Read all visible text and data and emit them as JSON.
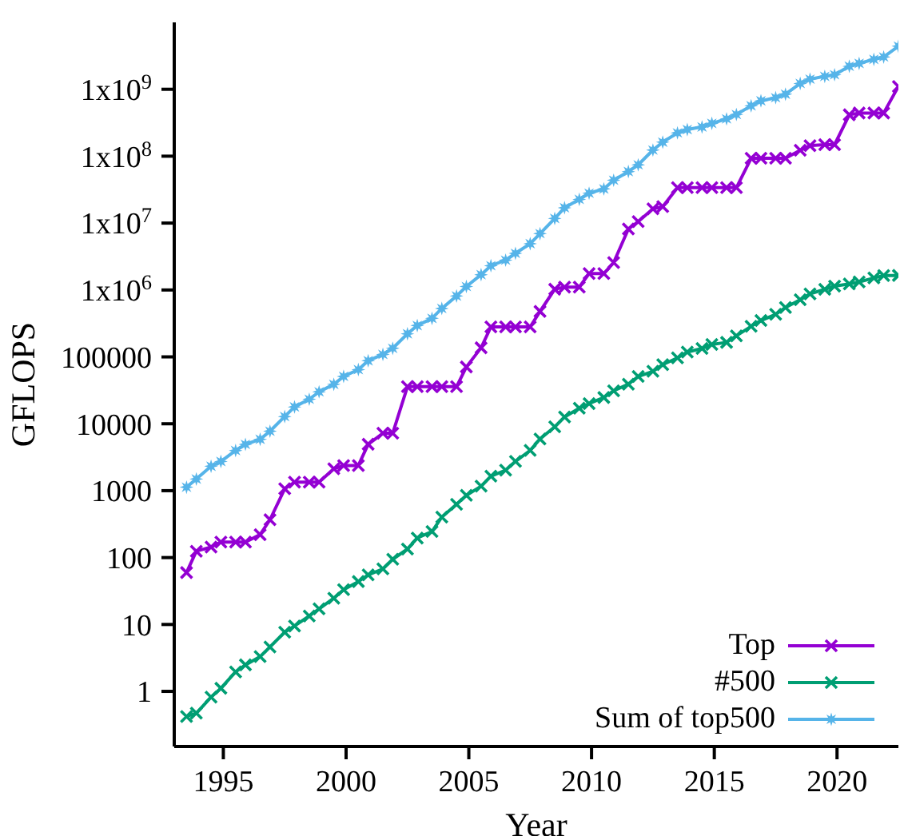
{
  "chart_data": {
    "type": "line",
    "xlabel": "Year",
    "ylabel": "GFLOPS",
    "log": "y",
    "grid": false,
    "legend": "bottom right",
    "xlim": [
      1993,
      2022.5
    ],
    "xticks": [
      1995,
      2000,
      2005,
      2010,
      2015,
      2020
    ],
    "ylim": [
      0.15,
      10000000000
    ],
    "yticks": [
      1,
      10,
      100,
      1000,
      10000,
      100000,
      {
        "value": 1000000,
        "label": "1x10$^{6}$"
      },
      {
        "value": 10000000,
        "label": "1x10$^{7}$"
      },
      {
        "value": 100000000,
        "label": "1x10$^{8}$"
      },
      {
        "value": 1000000000,
        "label": "1x10$^{9}$"
      }
    ],
    "x": [
      1993.5,
      1993.9,
      1994.5,
      1994.9,
      1995.5,
      1995.9,
      1996.5,
      1996.9,
      1997.5,
      1997.9,
      1998.5,
      1998.9,
      1999.5,
      1999.9,
      2000.5,
      2000.9,
      2001.5,
      2001.9,
      2002.5,
      2002.9,
      2003.5,
      2003.9,
      2004.5,
      2004.9,
      2005.5,
      2005.9,
      2006.5,
      2006.9,
      2007.5,
      2007.9,
      2008.5,
      2008.9,
      2009.5,
      2009.9,
      2010.5,
      2010.9,
      2011.5,
      2011.9,
      2012.5,
      2012.9,
      2013.5,
      2013.9,
      2014.5,
      2014.9,
      2015.5,
      2015.9,
      2016.5,
      2016.9,
      2017.5,
      2017.9,
      2018.5,
      2018.9,
      2019.5,
      2019.9,
      2020.5,
      2020.9,
      2021.5,
      2021.9,
      2022.5
    ],
    "series": [
      {
        "name": "Top",
        "color": "#9400d3",
        "marker": "cross",
        "values": [
          59.7,
          124.5,
          143.4,
          170.4,
          170.4,
          170.4,
          220.4,
          368.2,
          1068,
          1338,
          1338,
          1338,
          2121,
          2379,
          2379,
          4938,
          7226,
          7226,
          35860,
          35860,
          35860,
          35860,
          35860,
          70720,
          136800,
          280600,
          280600,
          280600,
          280600,
          478200,
          1026000,
          1105000,
          1105000,
          1759000,
          1759000,
          2566000,
          8162000,
          10510000,
          16320000,
          17590000,
          33860000,
          33860000,
          33860000,
          33860000,
          33860000,
          33860000,
          93010000,
          93010000,
          93010000,
          93010000,
          122300000,
          143500000,
          148600000,
          148600000,
          415500000,
          442000000,
          442000000,
          442000000,
          1102000000
        ]
      },
      {
        "name": "#500",
        "color": "#009e73",
        "marker": "cross",
        "values": [
          0.422,
          0.472,
          0.822,
          1.114,
          1.955,
          2.489,
          3.306,
          4.62,
          7.67,
          9.51,
          13.39,
          17.1,
          24.7,
          33.1,
          43.8,
          55.1,
          67.8,
          94.3,
          134.3,
          195.8,
          245.1,
          403.4,
          624,
          850.6,
          1166,
          1646,
          2026,
          2737,
          4005,
          5929,
          9000,
          12640,
          17090,
          20050,
          24670,
          31120,
          39090,
          50940,
          60820,
          76500,
          96620,
          117800,
          133700,
          153400,
          164700,
          206300,
          286100,
          349300,
          432200,
          548300,
          715600,
          874800,
          1022000,
          1142000,
          1228000,
          1317000,
          1511000,
          1646000,
          1649000
        ]
      },
      {
        "name": "Sum of top500",
        "color": "#56b4e9",
        "marker": "star",
        "values": [
          1128,
          1493,
          2318,
          2732,
          3982,
          4922,
          5862,
          7745,
          12820,
          17860,
          23270,
          30030,
          38890,
          51080,
          64520,
          87630,
          108800,
          134300,
          221400,
          293900,
          376300,
          529400,
          812800,
          1127000,
          1694000,
          2305000,
          2791000,
          3527000,
          4921000,
          6960000,
          11710000,
          16950000,
          22620000,
          27950000,
          32430000,
          43700000,
          58880000,
          74220000,
          123400000,
          162000000,
          223000000,
          250100000,
          273600000,
          308900000,
          361000000,
          419600000,
          566700000,
          671600000,
          749000000,
          845000000,
          1221000000,
          1417000000,
          1559000000,
          1650000000,
          2207000000,
          2432000000,
          2798000000,
          3040000000,
          4400000000
        ]
      }
    ]
  }
}
